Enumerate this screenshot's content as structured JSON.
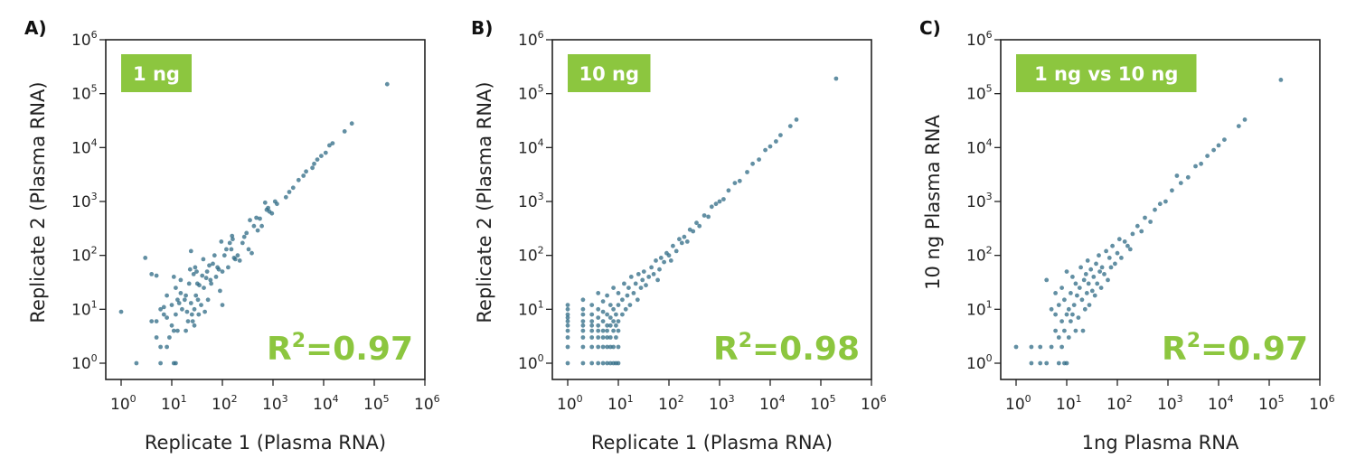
{
  "colors": {
    "point": "#2e6a84",
    "badge": "#8cc63f",
    "r2": "#8cc63f",
    "axis": "#222222"
  },
  "chart_data": [
    {
      "type": "scatter",
      "panel_label": "A)",
      "badge": "1 ng",
      "annotation": "R²=0.97",
      "xlabel": "Replicate 1 (Plasma RNA)",
      "ylabel": "Replicate 2 (Plasma RNA)",
      "xscale": "log",
      "yscale": "log",
      "xlim": [
        0.55,
        1000000
      ],
      "ylim": [
        0.5,
        1000000
      ],
      "x_tick_labels": [
        "10^0",
        "10^1",
        "10^2",
        "10^3",
        "10^4",
        "10^5",
        "10^6"
      ],
      "y_tick_labels": [
        "10^0",
        "10^1",
        "10^2",
        "10^3",
        "10^4",
        "10^5",
        "10^6"
      ],
      "points": [
        [
          1,
          9
        ],
        [
          2,
          1
        ],
        [
          3,
          90
        ],
        [
          4,
          45
        ],
        [
          4,
          6
        ],
        [
          5,
          42
        ],
        [
          5,
          6
        ],
        [
          5,
          3
        ],
        [
          6,
          2
        ],
        [
          6,
          1
        ],
        [
          6,
          10
        ],
        [
          7,
          11
        ],
        [
          7,
          8
        ],
        [
          8,
          2
        ],
        [
          8,
          7
        ],
        [
          8,
          18
        ],
        [
          9,
          3
        ],
        [
          10,
          5
        ],
        [
          10,
          12
        ],
        [
          11,
          40
        ],
        [
          11,
          1
        ],
        [
          11,
          4
        ],
        [
          12,
          1
        ],
        [
          12,
          25
        ],
        [
          12,
          8
        ],
        [
          13,
          15
        ],
        [
          13,
          4
        ],
        [
          14,
          13
        ],
        [
          15,
          35
        ],
        [
          15,
          20
        ],
        [
          16,
          10
        ],
        [
          18,
          15
        ],
        [
          19,
          18
        ],
        [
          19,
          4
        ],
        [
          20,
          9
        ],
        [
          21,
          6
        ],
        [
          22,
          30
        ],
        [
          23,
          55
        ],
        [
          24,
          120
        ],
        [
          24,
          13
        ],
        [
          25,
          8
        ],
        [
          26,
          6
        ],
        [
          27,
          45
        ],
        [
          28,
          10
        ],
        [
          28,
          5
        ],
        [
          29,
          60
        ],
        [
          30,
          18
        ],
        [
          31,
          50
        ],
        [
          32,
          30
        ],
        [
          33,
          15
        ],
        [
          34,
          8
        ],
        [
          35,
          28
        ],
        [
          38,
          12
        ],
        [
          40,
          42
        ],
        [
          42,
          85
        ],
        [
          43,
          25
        ],
        [
          45,
          9
        ],
        [
          48,
          38
        ],
        [
          50,
          50
        ],
        [
          52,
          15
        ],
        [
          55,
          65
        ],
        [
          58,
          35
        ],
        [
          60,
          30
        ],
        [
          65,
          70
        ],
        [
          70,
          100
        ],
        [
          75,
          40
        ],
        [
          80,
          60
        ],
        [
          85,
          55
        ],
        [
          90,
          22
        ],
        [
          95,
          180
        ],
        [
          100,
          12
        ],
        [
          100,
          50
        ],
        [
          110,
          100
        ],
        [
          120,
          130
        ],
        [
          130,
          60
        ],
        [
          140,
          170
        ],
        [
          150,
          130
        ],
        [
          155,
          230
        ],
        [
          160,
          200
        ],
        [
          170,
          90
        ],
        [
          180,
          85
        ],
        [
          200,
          100
        ],
        [
          220,
          80
        ],
        [
          250,
          170
        ],
        [
          270,
          220
        ],
        [
          300,
          260
        ],
        [
          330,
          130
        ],
        [
          350,
          450
        ],
        [
          380,
          110
        ],
        [
          420,
          350
        ],
        [
          470,
          500
        ],
        [
          500,
          290
        ],
        [
          550,
          480
        ],
        [
          600,
          350
        ],
        [
          700,
          950
        ],
        [
          750,
          700
        ],
        [
          800,
          760
        ],
        [
          850,
          650
        ],
        [
          950,
          600
        ],
        [
          1100,
          1000
        ],
        [
          1200,
          900
        ],
        [
          1800,
          1200
        ],
        [
          2100,
          1500
        ],
        [
          2500,
          1800
        ],
        [
          3200,
          2500
        ],
        [
          4000,
          3000
        ],
        [
          4500,
          3600
        ],
        [
          6000,
          4200
        ],
        [
          6500,
          5000
        ],
        [
          7500,
          6000
        ],
        [
          9000,
          7000
        ],
        [
          11000,
          8000
        ],
        [
          13000,
          11000
        ],
        [
          15000,
          12000
        ],
        [
          26000,
          20000
        ],
        [
          36000,
          28000
        ],
        [
          180000,
          150000
        ]
      ]
    },
    {
      "type": "scatter",
      "panel_label": "B)",
      "badge": "10 ng",
      "annotation": "R²=0.98",
      "xlabel": "Replicate 1 (Plasma RNA)",
      "ylabel": "Replicate 2 (Plasma RNA)",
      "xscale": "log",
      "yscale": "log",
      "xlim": [
        0.55,
        1000000
      ],
      "ylim": [
        0.5,
        1000000
      ],
      "x_tick_labels": [
        "10^0",
        "10^1",
        "10^2",
        "10^3",
        "10^4",
        "10^5",
        "10^6"
      ],
      "y_tick_labels": [
        "10^0",
        "10^1",
        "10^2",
        "10^3",
        "10^4",
        "10^5",
        "10^6"
      ],
      "points": [
        [
          1,
          1
        ],
        [
          1,
          2
        ],
        [
          1,
          3
        ],
        [
          1,
          4
        ],
        [
          1,
          5
        ],
        [
          1,
          6
        ],
        [
          1,
          7
        ],
        [
          1,
          8
        ],
        [
          1,
          10
        ],
        [
          1,
          12
        ],
        [
          2,
          1
        ],
        [
          2,
          2
        ],
        [
          2,
          3
        ],
        [
          2,
          4
        ],
        [
          2,
          5
        ],
        [
          2,
          6
        ],
        [
          2,
          8
        ],
        [
          2,
          10
        ],
        [
          2,
          15
        ],
        [
          3,
          1
        ],
        [
          3,
          2
        ],
        [
          3,
          3
        ],
        [
          3,
          4
        ],
        [
          3,
          5
        ],
        [
          3,
          6
        ],
        [
          3,
          8
        ],
        [
          3,
          12
        ],
        [
          4,
          1
        ],
        [
          4,
          2
        ],
        [
          4,
          3
        ],
        [
          4,
          4
        ],
        [
          4,
          5
        ],
        [
          4,
          7
        ],
        [
          4,
          10
        ],
        [
          4,
          20
        ],
        [
          5,
          1
        ],
        [
          5,
          2
        ],
        [
          5,
          3
        ],
        [
          5,
          4
        ],
        [
          5,
          6
        ],
        [
          5,
          9
        ],
        [
          5,
          14
        ],
        [
          6,
          1
        ],
        [
          6,
          2
        ],
        [
          6,
          3
        ],
        [
          6,
          4
        ],
        [
          6,
          5
        ],
        [
          6,
          8
        ],
        [
          6,
          18
        ],
        [
          7,
          1
        ],
        [
          7,
          2
        ],
        [
          7,
          3
        ],
        [
          7,
          5
        ],
        [
          7,
          7
        ],
        [
          7,
          12
        ],
        [
          8,
          1
        ],
        [
          8,
          2
        ],
        [
          8,
          4
        ],
        [
          8,
          6
        ],
        [
          8,
          10
        ],
        [
          8,
          25
        ],
        [
          9,
          1
        ],
        [
          9,
          3
        ],
        [
          9,
          5
        ],
        [
          9,
          8
        ],
        [
          10,
          1
        ],
        [
          10,
          2
        ],
        [
          10,
          4
        ],
        [
          10,
          6
        ],
        [
          10,
          12
        ],
        [
          10,
          20
        ],
        [
          12,
          8
        ],
        [
          12,
          15
        ],
        [
          13,
          30
        ],
        [
          14,
          10
        ],
        [
          15,
          18
        ],
        [
          16,
          25
        ],
        [
          17,
          12
        ],
        [
          18,
          40
        ],
        [
          20,
          20
        ],
        [
          22,
          30
        ],
        [
          24,
          15
        ],
        [
          25,
          45
        ],
        [
          28,
          25
        ],
        [
          30,
          35
        ],
        [
          32,
          50
        ],
        [
          35,
          28
        ],
        [
          40,
          40
        ],
        [
          45,
          60
        ],
        [
          50,
          45
        ],
        [
          55,
          80
        ],
        [
          60,
          35
        ],
        [
          65,
          55
        ],
        [
          70,
          90
        ],
        [
          80,
          75
        ],
        [
          90,
          110
        ],
        [
          100,
          100
        ],
        [
          110,
          80
        ],
        [
          120,
          150
        ],
        [
          140,
          120
        ],
        [
          160,
          200
        ],
        [
          180,
          170
        ],
        [
          200,
          220
        ],
        [
          230,
          180
        ],
        [
          260,
          300
        ],
        [
          300,
          280
        ],
        [
          350,
          400
        ],
        [
          400,
          350
        ],
        [
          500,
          550
        ],
        [
          600,
          520
        ],
        [
          700,
          800
        ],
        [
          850,
          900
        ],
        [
          1000,
          1000
        ],
        [
          1200,
          1100
        ],
        [
          1500,
          1600
        ],
        [
          2000,
          2200
        ],
        [
          2500,
          2400
        ],
        [
          3500,
          3500
        ],
        [
          4500,
          5000
        ],
        [
          6000,
          6000
        ],
        [
          8000,
          9000
        ],
        [
          10000,
          10500
        ],
        [
          13000,
          13000
        ],
        [
          16000,
          17000
        ],
        [
          25000,
          25000
        ],
        [
          33000,
          33000
        ],
        [
          200000,
          190000
        ]
      ]
    },
    {
      "type": "scatter",
      "panel_label": "C)",
      "badge": "1 ng vs 10 ng",
      "annotation": "R²=0.97",
      "xlabel": "1ng Plasma RNA",
      "ylabel": "10 ng Plasma RNA",
      "xscale": "log",
      "yscale": "log",
      "xlim": [
        0.55,
        1000000
      ],
      "ylim": [
        0.5,
        1000000
      ],
      "x_tick_labels": [
        "10^0",
        "10^1",
        "10^2",
        "10^3",
        "10^4",
        "10^5",
        "10^6"
      ],
      "y_tick_labels": [
        "10^0",
        "10^1",
        "10^2",
        "10^3",
        "10^4",
        "10^5",
        "10^6"
      ],
      "points": [
        [
          1,
          2
        ],
        [
          2,
          1
        ],
        [
          2,
          2
        ],
        [
          3,
          2
        ],
        [
          3,
          1
        ],
        [
          4,
          35
        ],
        [
          4,
          1
        ],
        [
          5,
          10
        ],
        [
          5,
          2
        ],
        [
          6,
          20
        ],
        [
          6,
          8
        ],
        [
          6,
          4
        ],
        [
          7,
          12
        ],
        [
          7,
          3
        ],
        [
          7,
          1
        ],
        [
          8,
          25
        ],
        [
          8,
          6
        ],
        [
          8,
          2
        ],
        [
          9,
          15
        ],
        [
          9,
          4
        ],
        [
          9,
          1
        ],
        [
          10,
          8
        ],
        [
          10,
          1
        ],
        [
          10,
          50
        ],
        [
          11,
          10
        ],
        [
          11,
          3
        ],
        [
          12,
          6
        ],
        [
          12,
          20
        ],
        [
          13,
          40
        ],
        [
          13,
          8
        ],
        [
          14,
          12
        ],
        [
          15,
          30
        ],
        [
          15,
          4
        ],
        [
          16,
          18
        ],
        [
          17,
          7
        ],
        [
          18,
          25
        ],
        [
          19,
          60
        ],
        [
          20,
          15
        ],
        [
          21,
          4
        ],
        [
          22,
          35
        ],
        [
          23,
          10
        ],
        [
          24,
          45
        ],
        [
          25,
          20
        ],
        [
          26,
          80
        ],
        [
          27,
          30
        ],
        [
          28,
          12
        ],
        [
          30,
          55
        ],
        [
          32,
          22
        ],
        [
          34,
          40
        ],
        [
          36,
          18
        ],
        [
          38,
          70
        ],
        [
          40,
          30
        ],
        [
          43,
          100
        ],
        [
          45,
          50
        ],
        [
          48,
          25
        ],
        [
          50,
          60
        ],
        [
          55,
          45
        ],
        [
          60,
          120
        ],
        [
          65,
          35
        ],
        [
          70,
          90
        ],
        [
          75,
          60
        ],
        [
          80,
          150
        ],
        [
          90,
          70
        ],
        [
          100,
          110
        ],
        [
          110,
          200
        ],
        [
          120,
          90
        ],
        [
          140,
          180
        ],
        [
          160,
          150
        ],
        [
          180,
          130
        ],
        [
          200,
          250
        ],
        [
          250,
          350
        ],
        [
          300,
          280
        ],
        [
          350,
          500
        ],
        [
          450,
          420
        ],
        [
          550,
          700
        ],
        [
          700,
          900
        ],
        [
          900,
          1000
        ],
        [
          1200,
          1600
        ],
        [
          1500,
          3000
        ],
        [
          1800,
          2200
        ],
        [
          2500,
          2800
        ],
        [
          3500,
          4500
        ],
        [
          4500,
          5000
        ],
        [
          6000,
          7000
        ],
        [
          8000,
          9000
        ],
        [
          10000,
          11000
        ],
        [
          13000,
          14000
        ],
        [
          25000,
          25000
        ],
        [
          33000,
          33000
        ],
        [
          170000,
          180000
        ]
      ]
    }
  ]
}
